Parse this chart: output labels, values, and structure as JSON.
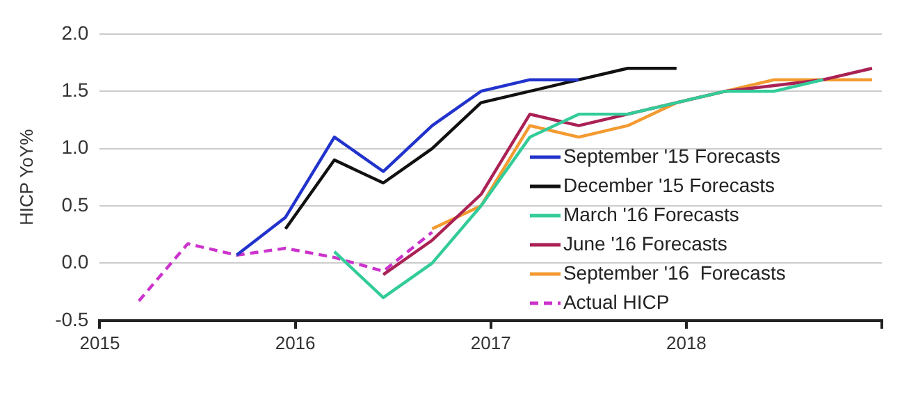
{
  "chart_data": {
    "type": "line",
    "ylabel": "HICP YoY%",
    "xlim": [
      2015,
      2019
    ],
    "xticks": [
      2015,
      2016,
      2017,
      2018,
      {
        "value": 2019,
        "label": null
      }
    ],
    "ylim": [
      -0.5,
      2.0
    ],
    "yticks": [
      {
        "value": -0.5,
        "label": "-0.5"
      },
      {
        "value": 0,
        "label": "0.0"
      },
      {
        "value": 0.5,
        "label": "0.5"
      },
      {
        "value": 1,
        "label": "1.0"
      },
      {
        "value": 1.5,
        "label": "1.5"
      },
      {
        "value": 2,
        "label": "2.0"
      }
    ],
    "grid": "y",
    "legend": "bottom right",
    "marker": "none",
    "series": [
      {
        "name": "September '15 Forecasts",
        "color": "#2233cc",
        "x": [
          2015.7,
          2015.95,
          2016.2,
          2016.45,
          2016.7,
          2016.95,
          2017.2,
          2017.45
        ],
        "values": [
          0.07,
          0.4,
          1.1,
          0.8,
          1.2,
          1.5,
          1.6,
          1.6
        ]
      },
      {
        "name": "December '15 Forecasts",
        "color": "#111111",
        "x": [
          2015.95,
          2016.2,
          2016.45,
          2016.7,
          2016.95,
          2017.2,
          2017.45,
          2017.7,
          2017.95
        ],
        "values": [
          0.3,
          0.9,
          0.7,
          1.0,
          1.4,
          1.5,
          1.6,
          1.7,
          1.7
        ]
      },
      {
        "name": "March '16 Forecasts",
        "color": "#33cc99",
        "x": [
          2016.2,
          2016.45,
          2016.7,
          2016.95,
          2017.2,
          2017.45,
          2017.7,
          2017.95,
          2018.2,
          2018.45,
          2018.7
        ],
        "values": [
          0.1,
          -0.3,
          0.0,
          0.5,
          1.1,
          1.3,
          1.3,
          1.4,
          1.5,
          1.5,
          1.6
        ]
      },
      {
        "name": "June '16 Forecasts",
        "color": "#aa2255",
        "x": [
          2016.45,
          2016.7,
          2016.95,
          2017.2,
          2017.45,
          2017.7,
          2017.95,
          2018.2,
          2018.45,
          2018.7,
          2018.95
        ],
        "values": [
          -0.1,
          0.2,
          0.6,
          1.3,
          1.2,
          1.3,
          1.4,
          1.5,
          1.55,
          1.6,
          1.7
        ]
      },
      {
        "name": "September '16  Forecasts",
        "color": "#f39a30",
        "x": [
          2016.7,
          2016.95,
          2017.2,
          2017.45,
          2017.7,
          2017.95,
          2018.2,
          2018.45,
          2018.7,
          2018.95
        ],
        "values": [
          0.3,
          0.5,
          1.2,
          1.1,
          1.2,
          1.4,
          1.5,
          1.6,
          1.6,
          1.6
        ]
      },
      {
        "name": "Actual HICP",
        "color": "#cc33cc",
        "line_style": "dashed",
        "x": [
          2015.2,
          2015.45,
          2015.7,
          2015.95,
          2016.2,
          2016.45,
          2016.7
        ],
        "values": [
          -0.33,
          0.17,
          0.07,
          0.13,
          0.05,
          -0.07,
          0.27
        ]
      }
    ]
  }
}
